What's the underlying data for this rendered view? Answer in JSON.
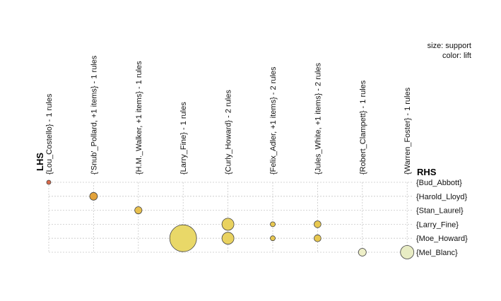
{
  "chart_data": {
    "type": "scatter",
    "subtype": "grouped-matrix",
    "legend": {
      "size_label": "size: support",
      "color_label": "color: lift",
      "placement": "top-right"
    },
    "axis_titles": {
      "lhs": "LHS",
      "rhs": "RHS"
    },
    "lhs_groups": [
      "{Lou_Costello} - 1 rules",
      "{'Snub'_Pollard, +1 items} - 1 rules",
      "{H.M._Walker, +1 items} - 1 rules",
      "{Larry_Fine} - 1 rules",
      "{Curly_Howard} - 2 rules",
      "{Felix_Adler, +1 items} - 2 rules",
      "{Jules_White, +1 items} - 2 rules",
      "{Robert_Clampett} - 1 rules",
      "{Warren_Foster} - 1 rules"
    ],
    "rhs_items": [
      "{Bud_Abbott}",
      "{Harold_Lloyd}",
      "{Stan_Laurel}",
      "{Larry_Fine}",
      "{Moe_Howard}",
      "{Mel_Blanc}"
    ],
    "points": [
      {
        "lhs": 0,
        "rhs": 0,
        "support": 0.06,
        "color": "#d96a4a"
      },
      {
        "lhs": 1,
        "rhs": 1,
        "support": 0.25,
        "color": "#e2a23a"
      },
      {
        "lhs": 2,
        "rhs": 2,
        "support": 0.22,
        "color": "#e8c04e"
      },
      {
        "lhs": 3,
        "rhs": 4,
        "support": 3.0,
        "color": "#e9d868"
      },
      {
        "lhs": 4,
        "rhs": 3,
        "support": 0.6,
        "color": "#e9d260"
      },
      {
        "lhs": 4,
        "rhs": 4,
        "support": 0.6,
        "color": "#e9d260"
      },
      {
        "lhs": 5,
        "rhs": 3,
        "support": 0.1,
        "color": "#e8c850"
      },
      {
        "lhs": 5,
        "rhs": 4,
        "support": 0.1,
        "color": "#e8c850"
      },
      {
        "lhs": 6,
        "rhs": 3,
        "support": 0.2,
        "color": "#e8c850"
      },
      {
        "lhs": 6,
        "rhs": 4,
        "support": 0.2,
        "color": "#e8c850"
      },
      {
        "lhs": 7,
        "rhs": 5,
        "support": 0.25,
        "color": "#eeefc8"
      },
      {
        "lhs": 8,
        "rhs": 5,
        "support": 0.75,
        "color": "#e8ecc4"
      }
    ]
  }
}
